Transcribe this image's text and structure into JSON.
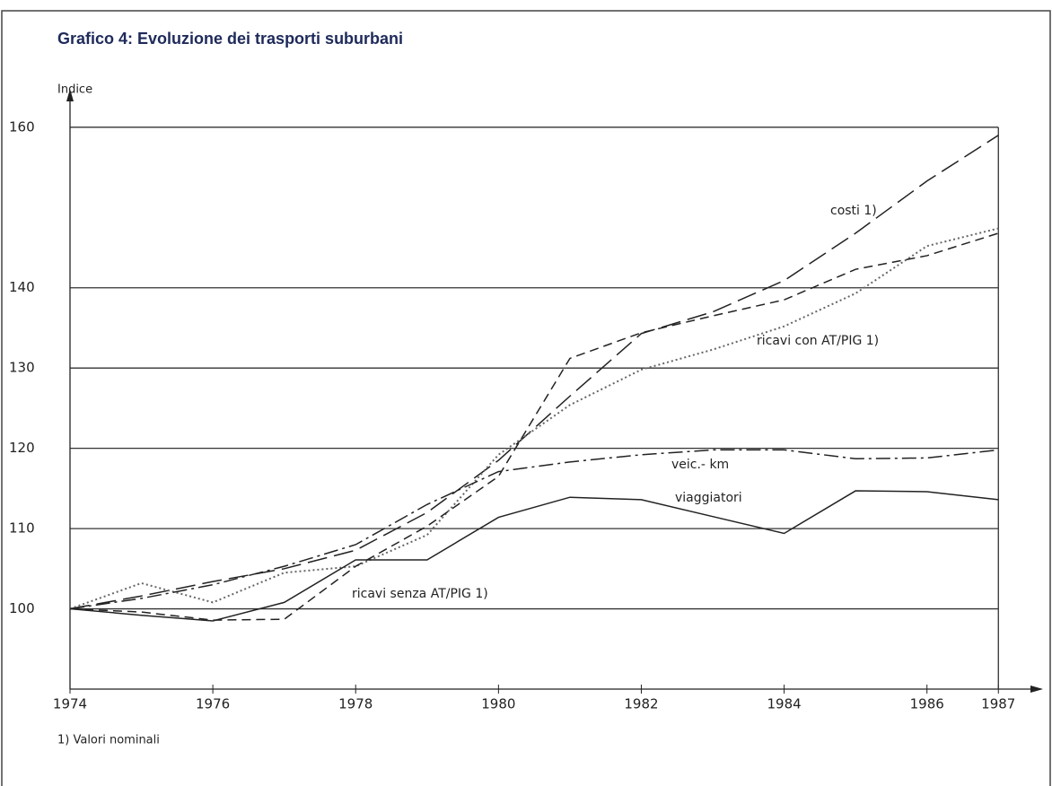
{
  "chart_data": {
    "type": "line",
    "title": "Grafico 4: Evoluzione dei trasporti suburbani",
    "y_label": "Indice",
    "footnote": "1) Valori nominali",
    "x": [
      1974,
      1975,
      1976,
      1977,
      1978,
      1979,
      1980,
      1981,
      1982,
      1983,
      1984,
      1985,
      1986,
      1987
    ],
    "xlim": [
      1974,
      1987.6
    ],
    "xticks": [
      1974,
      1976,
      1978,
      1980,
      1982,
      1984,
      1986,
      1987
    ],
    "ylim": [
      90,
      163
    ],
    "yticks": [
      100,
      110,
      120,
      130,
      140,
      160
    ],
    "grid": true,
    "series": [
      {
        "name": "costi 1)",
        "color": "#222222",
        "dash": "long-dash",
        "values": [
          100,
          101.6,
          103.4,
          105,
          107.3,
          112,
          118.5,
          126.5,
          134.3,
          137,
          140.9,
          146.8,
          153.3,
          159
        ]
      },
      {
        "name": "ricavi con AT/PIG 1)",
        "color": "#666666",
        "dash": "dotted",
        "values": [
          100,
          103.2,
          100.8,
          104.5,
          105.3,
          109.2,
          119.2,
          125.4,
          129.8,
          132.3,
          135.2,
          139.3,
          145.2,
          147.4
        ]
      },
      {
        "name": "veic.- km",
        "color": "#222222",
        "dash": "dash-dot",
        "values": [
          100,
          101.3,
          103,
          105.3,
          108,
          113,
          117.1,
          118.3,
          119.2,
          119.8,
          119.8,
          118.7,
          118.8,
          119.8
        ]
      },
      {
        "name": "viaggiatori",
        "color": "#222222",
        "dash": "solid",
        "values": [
          100,
          99.2,
          98.5,
          100.8,
          106.1,
          106.1,
          111.4,
          113.9,
          113.6,
          111.5,
          109.4,
          114.7,
          114.6,
          113.6
        ]
      },
      {
        "name": "ricavi senza AT/PIG 1)",
        "color": "#222222",
        "dash": "dashed",
        "values": [
          100,
          99.6,
          98.6,
          98.7,
          105.3,
          110.3,
          116.5,
          131.2,
          134.4,
          136.5,
          138.5,
          142.3,
          144,
          146.8
        ]
      }
    ]
  }
}
